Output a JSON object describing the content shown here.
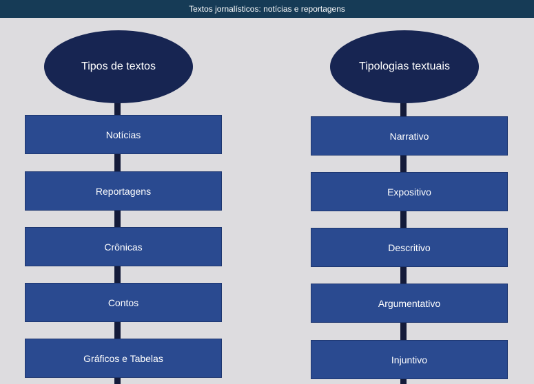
{
  "header": {
    "title": "Textos jornalísticos: notícias e reportagens"
  },
  "diagram": {
    "left": {
      "heading": "Tipos de textos",
      "items": [
        "Notícias",
        "Reportagens",
        "Crônicas",
        "Contos",
        "Gráficos e Tabelas"
      ]
    },
    "right": {
      "heading": "Tipologias textuais",
      "items": [
        "Narrativo",
        "Expositivo",
        "Descritivo",
        "Argumentativo",
        "Injuntivo"
      ]
    }
  },
  "colors": {
    "title_bar": "#163b56",
    "background": "#dddcdf",
    "ellipse": "#172552",
    "box": "#2a4a90",
    "connector": "#141b3a"
  }
}
